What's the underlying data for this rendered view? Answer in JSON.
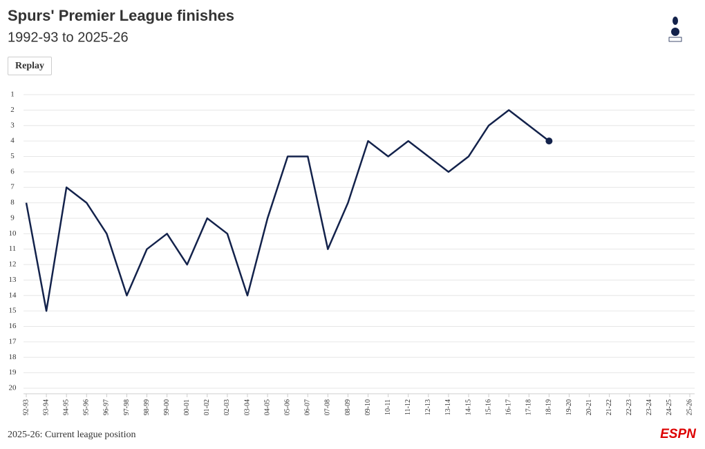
{
  "chart_data": {
    "type": "line",
    "title": "Spurs' Premier League finishes",
    "subtitle": "1992-93 to 2025-26",
    "categories": [
      "92-93",
      "93-94",
      "94-95",
      "95-96",
      "96-97",
      "97-98",
      "98-99",
      "99-00",
      "00-01",
      "01-02",
      "02-03",
      "03-04",
      "04-05",
      "05-06",
      "06-07",
      "07-08",
      "08-09",
      "09-10",
      "10-11",
      "11-12",
      "12-13",
      "13-14",
      "14-15",
      "15-16",
      "16-17",
      "17-18",
      "18-19",
      "19-20",
      "20-21",
      "21-22",
      "22-23",
      "23-24",
      "24-25",
      "25-26"
    ],
    "values": [
      8,
      15,
      7,
      8,
      10,
      14,
      11,
      10,
      12,
      9,
      10,
      14,
      9,
      5,
      5,
      11,
      8,
      4,
      5,
      4,
      5,
      6,
      5,
      3,
      2,
      3,
      4,
      null,
      null,
      null,
      null,
      null,
      null,
      null
    ],
    "color": "#13224b",
    "ylim": [
      20,
      1
    ],
    "yticks": [
      1,
      2,
      3,
      4,
      5,
      6,
      7,
      8,
      9,
      10,
      11,
      12,
      13,
      14,
      15,
      16,
      17,
      18,
      19,
      20
    ],
    "grid": true,
    "note": "2025-26: Current league position"
  },
  "button": "Replay",
  "logo": "ESPN"
}
